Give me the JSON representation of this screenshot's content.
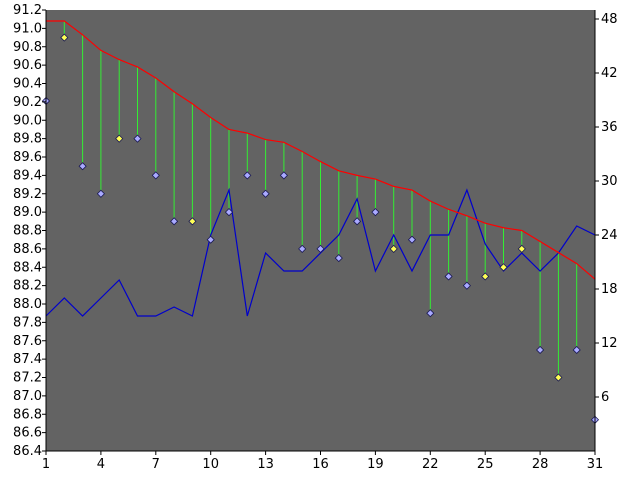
{
  "chart_data": {
    "type": "line",
    "title": "",
    "xlabel": "",
    "ylabel": "",
    "y2label": "",
    "grid": false,
    "legend": "none",
    "x": [
      1,
      2,
      3,
      4,
      5,
      6,
      7,
      8,
      9,
      10,
      11,
      12,
      13,
      14,
      15,
      16,
      17,
      18,
      19,
      20,
      21,
      22,
      23,
      24,
      25,
      26,
      27,
      28,
      29,
      30,
      31
    ],
    "xticks": [
      1,
      4,
      7,
      10,
      13,
      16,
      19,
      22,
      25,
      28,
      31
    ],
    "ylim": [
      86.4,
      91.2
    ],
    "yticks": [
      86.4,
      86.6,
      86.8,
      87.0,
      87.2,
      87.4,
      87.6,
      87.8,
      88.0,
      88.2,
      88.4,
      88.6,
      88.8,
      89.0,
      89.2,
      89.4,
      89.6,
      89.8,
      90.0,
      90.2,
      90.4,
      90.6,
      90.8,
      91.0,
      91.2
    ],
    "y2lim": [
      0,
      49
    ],
    "y2ticks": [
      6,
      12,
      18,
      24,
      30,
      36,
      42,
      48
    ],
    "series": [
      {
        "role": "envelope",
        "axis": "left",
        "color": "#ff0000",
        "values": [
          91.08,
          91.08,
          90.93,
          90.76,
          90.66,
          90.58,
          90.46,
          90.31,
          90.18,
          90.03,
          89.9,
          89.86,
          89.79,
          89.76,
          89.66,
          89.55,
          89.45,
          89.4,
          89.36,
          89.28,
          89.24,
          89.12,
          89.03,
          88.96,
          88.88,
          88.83,
          88.8,
          88.68,
          88.56,
          88.44,
          88.27
        ]
      },
      {
        "role": "markers",
        "axis": "left",
        "values": [
          90.21,
          90.9,
          89.5,
          89.2,
          89.8,
          89.8,
          89.4,
          88.9,
          88.9,
          88.7,
          89.0,
          89.4,
          89.2,
          89.4,
          88.6,
          88.6,
          88.5,
          88.9,
          89.0,
          88.6,
          88.7,
          87.9,
          88.3,
          88.2,
          88.3,
          88.4,
          88.6,
          87.5,
          87.2,
          87.5,
          86.74
        ],
        "highlight": [
          false,
          true,
          false,
          false,
          true,
          false,
          false,
          false,
          true,
          false,
          false,
          false,
          false,
          false,
          false,
          false,
          false,
          false,
          false,
          true,
          false,
          false,
          false,
          false,
          true,
          true,
          true,
          false,
          true,
          false,
          false
        ]
      },
      {
        "role": "count",
        "axis": "right",
        "color": "#0000cc",
        "values": [
          15,
          17,
          15,
          17,
          19,
          15,
          15,
          16,
          15,
          24,
          29,
          15,
          22,
          20,
          20,
          22,
          24,
          28,
          20,
          24,
          20,
          24,
          24,
          29,
          23,
          20,
          22,
          20,
          22,
          25,
          24
        ]
      }
    ],
    "colors": {
      "plot_background": "#636363",
      "drop_lines": "#33ee33",
      "marker_normal": "#aaaaff",
      "marker_highlight": "#ffff55",
      "marker_outline": "#1a1a55"
    }
  }
}
